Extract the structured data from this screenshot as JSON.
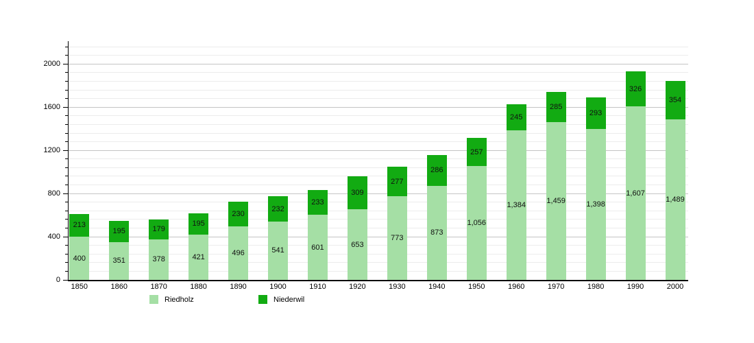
{
  "chart_data": {
    "type": "bar",
    "stacked": true,
    "title": "",
    "categories": [
      "1850",
      "1860",
      "1870",
      "1880",
      "1890",
      "1900",
      "1910",
      "1920",
      "1930",
      "1940",
      "1950",
      "1960",
      "1970",
      "1980",
      "1990",
      "2000"
    ],
    "series": [
      {
        "name": "Riedholz",
        "color": "#a5dfa5",
        "values": [
          400,
          351,
          378,
          421,
          496,
          541,
          601,
          653,
          773,
          873,
          1056,
          1384,
          1459,
          1398,
          1607,
          1489
        ]
      },
      {
        "name": "Niederwil",
        "color": "#12ab12",
        "values": [
          213,
          195,
          179,
          195,
          230,
          232,
          233,
          309,
          277,
          286,
          257,
          245,
          285,
          293,
          326,
          354
        ]
      }
    ],
    "value_labels": "inside-segment-center",
    "xlabel": "",
    "ylabel": "",
    "ylim": [
      0,
      2200
    ],
    "y_major_ticks": [
      0,
      400,
      800,
      1200,
      1600,
      2000
    ],
    "y_minor_step": 80,
    "grid": true,
    "legend_position": "bottom"
  },
  "colors": {
    "grid_major": "#c4c4c4",
    "grid_minor": "#ececec",
    "axis": "#000000",
    "label_text": "#111111"
  }
}
